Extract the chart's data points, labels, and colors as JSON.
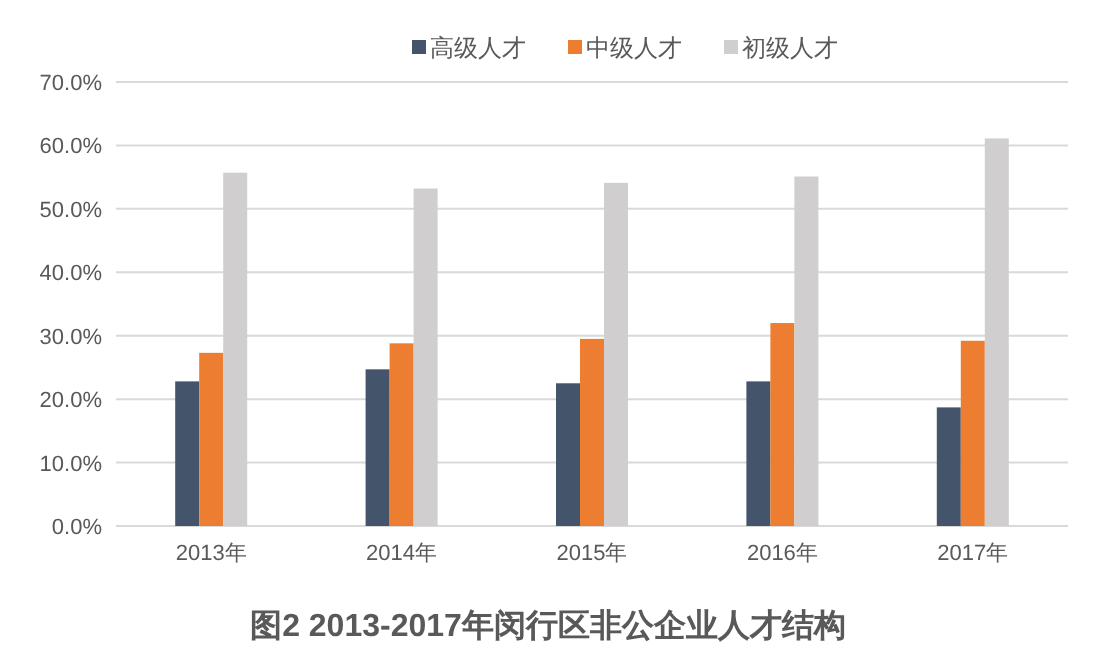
{
  "chart_data": {
    "type": "bar",
    "title": "图2 2013-2017年闵行区非公企业人才结构",
    "categories": [
      "2013年",
      "2014年",
      "2015年",
      "2016年",
      "2017年"
    ],
    "series": [
      {
        "name": "高级人才",
        "color": "#44546a",
        "values": [
          22.8,
          24.7,
          22.5,
          22.8,
          18.7
        ]
      },
      {
        "name": "中级人才",
        "color": "#ed7d31",
        "values": [
          27.3,
          28.8,
          29.5,
          32.0,
          29.2
        ]
      },
      {
        "name": "初级人才",
        "color": "#d0cece",
        "values": [
          55.7,
          53.2,
          54.1,
          55.1,
          61.1
        ]
      }
    ],
    "ylim": [
      0,
      70
    ],
    "yticks": [
      {
        "value": 0,
        "label": "0.0%"
      },
      {
        "value": 10,
        "label": "10.0%"
      },
      {
        "value": 20,
        "label": "20.0%"
      },
      {
        "value": 30,
        "label": "30.0%"
      },
      {
        "value": 40,
        "label": "40.0%"
      },
      {
        "value": 50,
        "label": "50.0%"
      },
      {
        "value": 60,
        "label": "60.0%"
      },
      {
        "value": 70,
        "label": "70.0%"
      }
    ],
    "grid": "y",
    "legend": "top"
  }
}
